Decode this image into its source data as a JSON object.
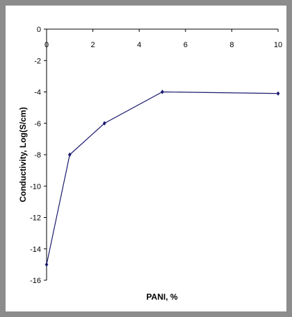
{
  "chart_data": {
    "type": "line",
    "title": "",
    "xlabel": "PANI, %",
    "ylabel": "Conductivity, Log(S/cm)",
    "x": [
      0,
      1,
      2.5,
      5,
      10
    ],
    "series": [
      {
        "values": [
          -15,
          -8,
          -6,
          -4,
          -4.1
        ],
        "color": "#1a1a6e"
      }
    ],
    "xlim": [
      0,
      10
    ],
    "ylim": [
      -16,
      0
    ],
    "xticks": [
      "0",
      "2",
      "4",
      "6",
      "8",
      "10"
    ],
    "yticks": [
      "0",
      "-2",
      "-4",
      "-6",
      "-8",
      "-10",
      "-12",
      "-14",
      "-16"
    ],
    "x_axis_position": "top",
    "grid": false,
    "legend": "none",
    "marker": "diamond"
  }
}
